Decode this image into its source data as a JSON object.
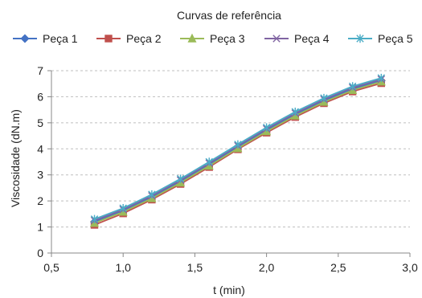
{
  "chart_data": {
    "type": "line",
    "title": "Curvas de referência",
    "xlabel": "t (min)",
    "ylabel": "Viscosidade (dN.m)",
    "xlim": [
      0.5,
      3.0
    ],
    "ylim": [
      0,
      7
    ],
    "x_ticks": [
      "0,5",
      "1,0",
      "1,5",
      "2,0",
      "2,5",
      "3,0"
    ],
    "y_ticks": [
      "0",
      "1",
      "2",
      "3",
      "4",
      "5",
      "6",
      "7"
    ],
    "grid": "horizontal dashed",
    "legend_position": "top",
    "x": [
      0.8,
      1.0,
      1.2,
      1.4,
      1.6,
      1.8,
      2.0,
      2.2,
      2.4,
      2.6,
      2.8
    ],
    "series": [
      {
        "name": "Peça 1",
        "color": "#4472C4",
        "marker": "diamond",
        "values": [
          1.2,
          1.62,
          2.15,
          2.75,
          3.4,
          4.08,
          4.72,
          5.32,
          5.85,
          6.3,
          6.62
        ]
      },
      {
        "name": "Peça 2",
        "color": "#C0504D",
        "marker": "square",
        "values": [
          1.08,
          1.52,
          2.05,
          2.65,
          3.3,
          3.98,
          4.62,
          5.22,
          5.75,
          6.2,
          6.52
        ]
      },
      {
        "name": "Peça 3",
        "color": "#9BBB59",
        "marker": "triangle",
        "values": [
          1.15,
          1.58,
          2.1,
          2.7,
          3.35,
          4.02,
          4.67,
          5.27,
          5.8,
          6.25,
          6.58
        ]
      },
      {
        "name": "Peça 4",
        "color": "#8064A2",
        "marker": "x",
        "values": [
          1.25,
          1.67,
          2.2,
          2.8,
          3.45,
          4.12,
          4.77,
          5.37,
          5.9,
          6.35,
          6.67
        ]
      },
      {
        "name": "Peça 5",
        "color": "#4BACC6",
        "marker": "asterisk",
        "values": [
          1.3,
          1.72,
          2.25,
          2.85,
          3.5,
          4.17,
          4.82,
          5.42,
          5.95,
          6.4,
          6.72
        ]
      }
    ]
  }
}
